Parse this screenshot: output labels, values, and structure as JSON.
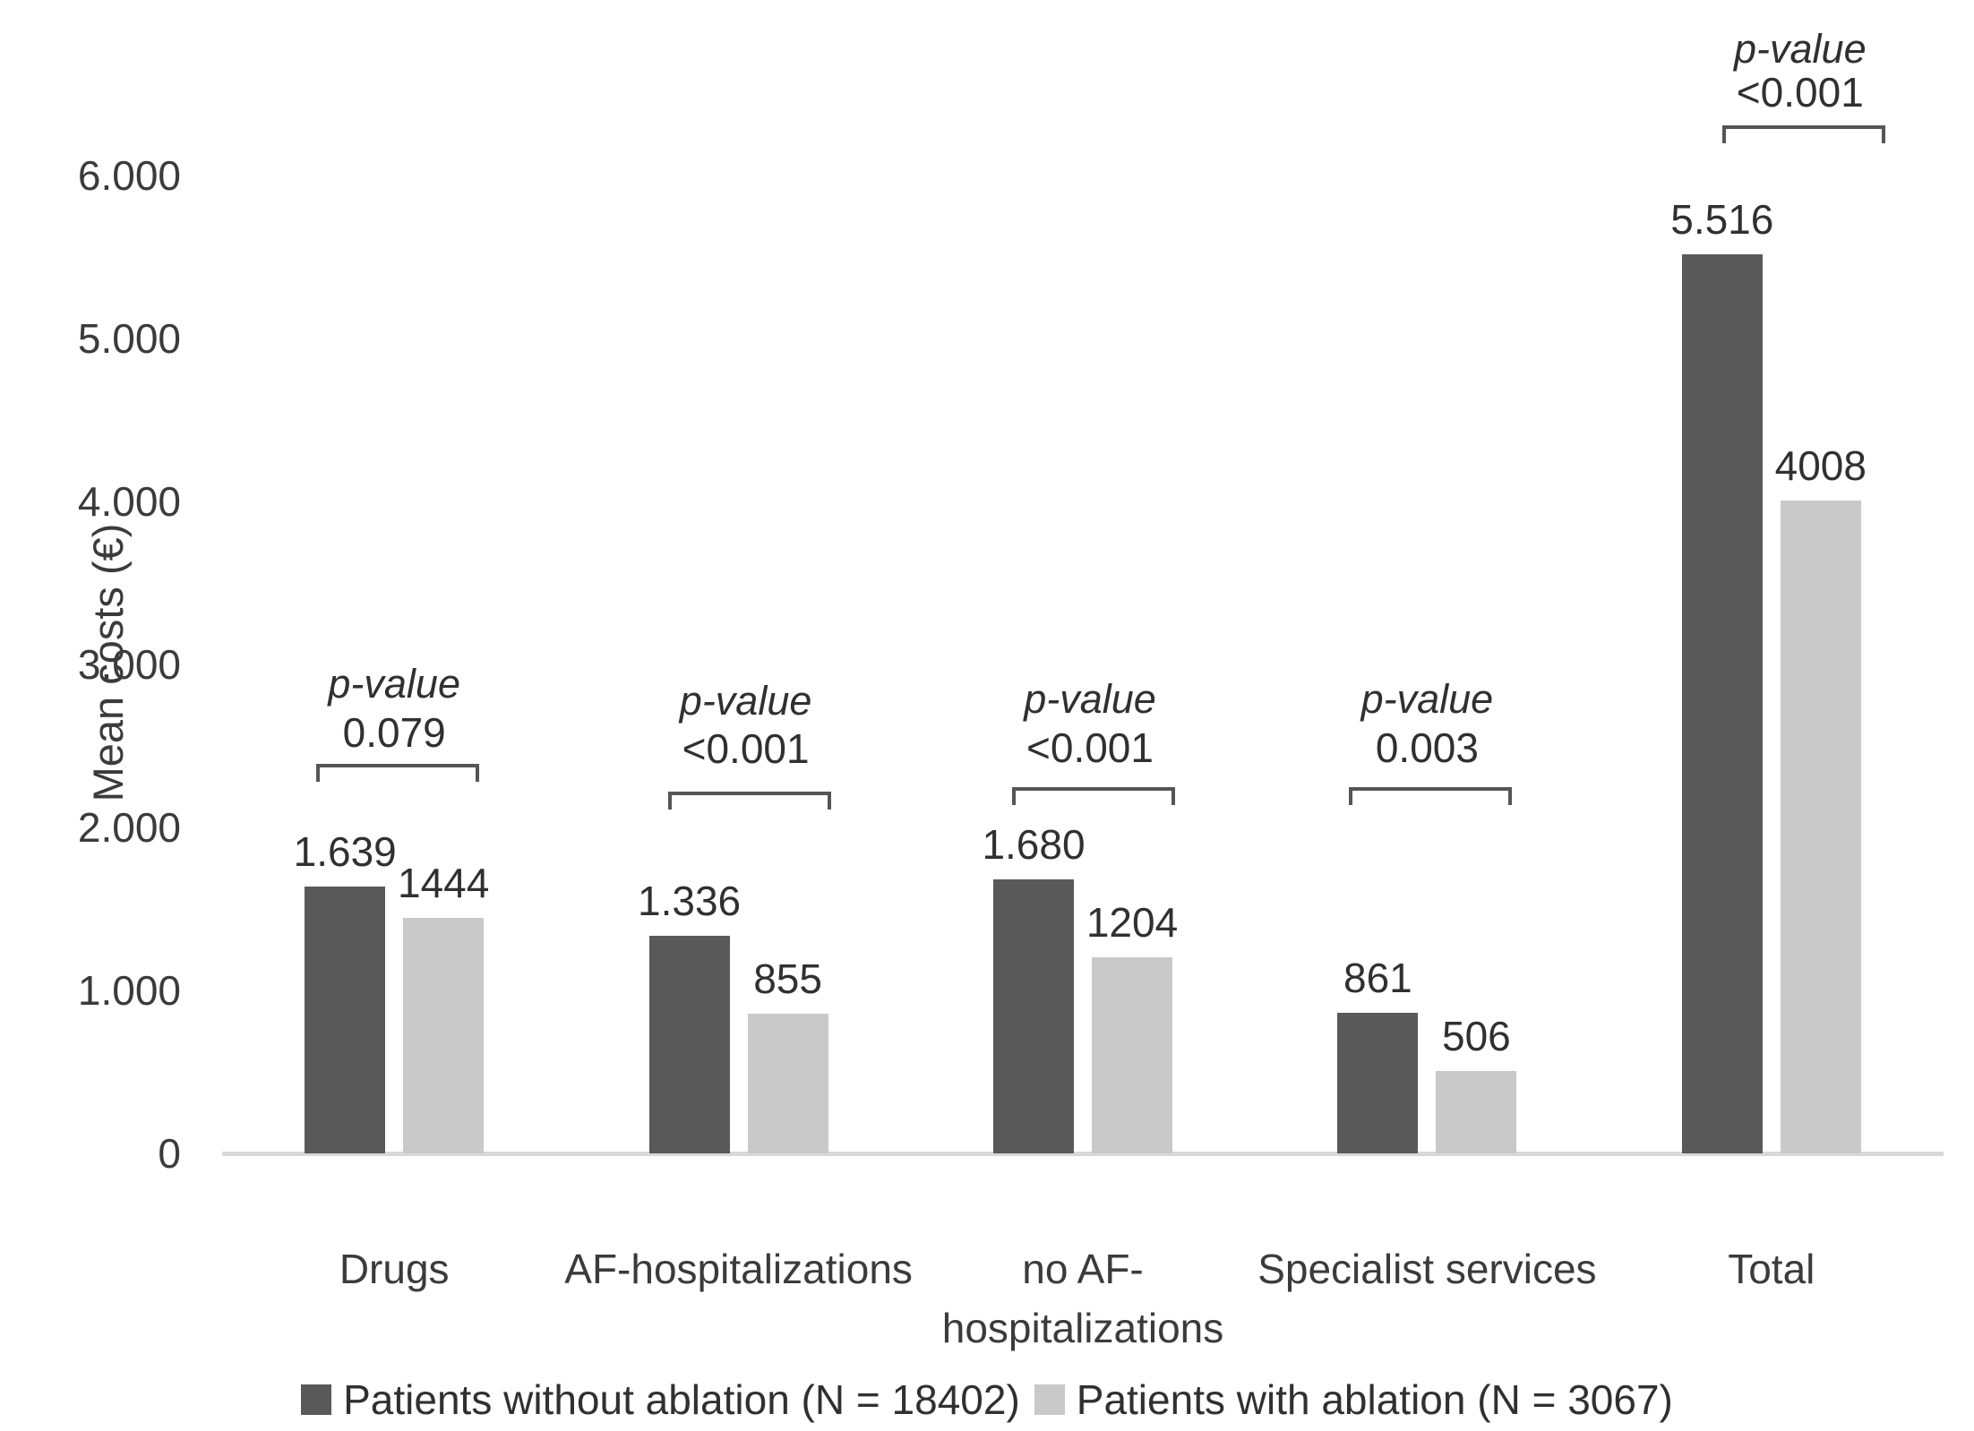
{
  "chart_data": {
    "type": "bar",
    "title": "",
    "ylabel": "Mean costs (€)",
    "xlabel": "",
    "ylim": [
      0,
      6000
    ],
    "ytick_values": [
      0,
      1000,
      2000,
      3000,
      4000,
      5000,
      6000
    ],
    "ytick_labels": [
      "0",
      "1.000",
      "2.000",
      "3.000",
      "4.000",
      "5.000",
      "6.000"
    ],
    "grid": false,
    "legend_position": "bottom",
    "categories": [
      "Drugs",
      "AF-hospitalizations",
      "no AF-hospitalizations",
      "Specialist services",
      "Total"
    ],
    "category_display_lines": [
      [
        "Drugs"
      ],
      [
        "AF-hospitalizations"
      ],
      [
        "no AF-",
        "hospitalizations"
      ],
      [
        "Specialist services"
      ],
      [
        "Total"
      ]
    ],
    "series": [
      {
        "name": "Patients without ablation (N = 18402)",
        "color": "#595959",
        "values": [
          1639,
          1336,
          1680,
          861,
          5516
        ],
        "value_labels": [
          "1.639",
          "1.336",
          "1.680",
          "861",
          "5.516"
        ]
      },
      {
        "name": "Patients with ablation (N = 3067)",
        "color": "#c9c9c9",
        "values": [
          1444,
          855,
          1204,
          506,
          4008
        ],
        "value_labels": [
          "1444",
          "855",
          "1204",
          "506",
          "4008"
        ]
      }
    ],
    "p_values": [
      {
        "label": "p-value",
        "value": "0.079"
      },
      {
        "label": "p-value",
        "value": "<0.001"
      },
      {
        "label": "p-value",
        "value": "<0.001"
      },
      {
        "label": "p-value",
        "value": "0.003"
      },
      {
        "label": "p-value",
        "value": "<0.001"
      }
    ],
    "colors": {
      "series_dark": "#595959",
      "series_light": "#c9c9c9",
      "axis_line": "#d9d9d9",
      "bracket_line": "#555555",
      "text": "#3b3b3b",
      "background": "#ffffff"
    }
  }
}
